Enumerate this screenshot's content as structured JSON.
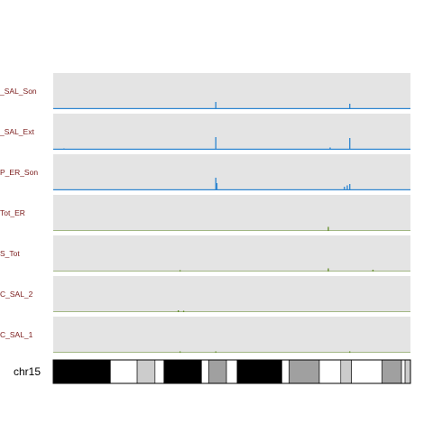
{
  "chart_data": {
    "type": "area",
    "x_range": [
      0,
      100
    ],
    "colors": {
      "panel": "#e4e4e4",
      "blue": "#2b84d0",
      "green": "#5f8a24",
      "label": "#7a1a1a"
    },
    "tracks": [
      {
        "label": "_SAL_Son",
        "color": "#2b84d0",
        "baseline": 1.2,
        "peaks": [
          [
            45.5,
            8.0
          ],
          [
            83.0,
            6.0
          ]
        ]
      },
      {
        "label": "_SAL_Ext",
        "color": "#2b84d0",
        "baseline": 1.2,
        "peaks": [
          [
            45.5,
            14.0
          ],
          [
            83.0,
            13.0
          ],
          [
            77.5,
            2.5
          ],
          [
            3.0,
            1.5
          ]
        ]
      },
      {
        "label": "P_ER_Son",
        "color": "#2b84d0",
        "baseline": 1.2,
        "peaks": [
          [
            45.5,
            14.0
          ],
          [
            45.8,
            8.0
          ],
          [
            81.5,
            4.0
          ],
          [
            82.3,
            5.5
          ],
          [
            83.0,
            7.0
          ]
        ]
      },
      {
        "label": "Tot_ER",
        "color": "#5f8a24",
        "baseline": 0.5,
        "peaks": [
          [
            77.0,
            4.5
          ]
        ]
      },
      {
        "label": "S_Tot",
        "color": "#5f8a24",
        "baseline": 0.5,
        "peaks": [
          [
            35.5,
            1.5
          ],
          [
            77.0,
            3.5
          ],
          [
            89.5,
            2.0
          ]
        ]
      },
      {
        "label": "C_SAL_2",
        "color": "#5f8a24",
        "baseline": 0.5,
        "peaks": [
          [
            35.0,
            2.0
          ],
          [
            36.5,
            1.5
          ]
        ]
      },
      {
        "label": "C_SAL_1",
        "color": "#5f8a24",
        "baseline": 0.5,
        "peaks": [
          [
            35.5,
            1.5
          ],
          [
            45.5,
            1.5
          ],
          [
            83.0,
            1.5
          ]
        ]
      }
    ],
    "chromosome": {
      "label": "chr15",
      "bands": [
        {
          "start": 0,
          "end": 16,
          "stain": "#000000"
        },
        {
          "start": 16,
          "end": 23.5,
          "stain": "#ffffff"
        },
        {
          "start": 23.5,
          "end": 28.5,
          "stain": "#cccccc"
        },
        {
          "start": 28.5,
          "end": 31,
          "stain": "#ffffff"
        },
        {
          "start": 31,
          "end": 41.5,
          "stain": "#000000"
        },
        {
          "start": 41.5,
          "end": 43.5,
          "stain": "#ffffff"
        },
        {
          "start": 43.5,
          "end": 48.5,
          "stain": "#a0a0a0"
        },
        {
          "start": 48.5,
          "end": 51.5,
          "stain": "#ffffff"
        },
        {
          "start": 51.5,
          "end": 64,
          "stain": "#000000"
        },
        {
          "start": 64,
          "end": 66,
          "stain": "#ffffff"
        },
        {
          "start": 66,
          "end": 74.5,
          "stain": "#a0a0a0"
        },
        {
          "start": 74.5,
          "end": 80.5,
          "stain": "#ffffff"
        },
        {
          "start": 80.5,
          "end": 83.5,
          "stain": "#cccccc"
        },
        {
          "start": 83.5,
          "end": 92,
          "stain": "#ffffff"
        },
        {
          "start": 92,
          "end": 97.5,
          "stain": "#a0a0a0"
        },
        {
          "start": 97.5,
          "end": 98.5,
          "stain": "#ffffff"
        },
        {
          "start": 98.5,
          "end": 100,
          "stain": "#cccccc"
        }
      ]
    }
  }
}
